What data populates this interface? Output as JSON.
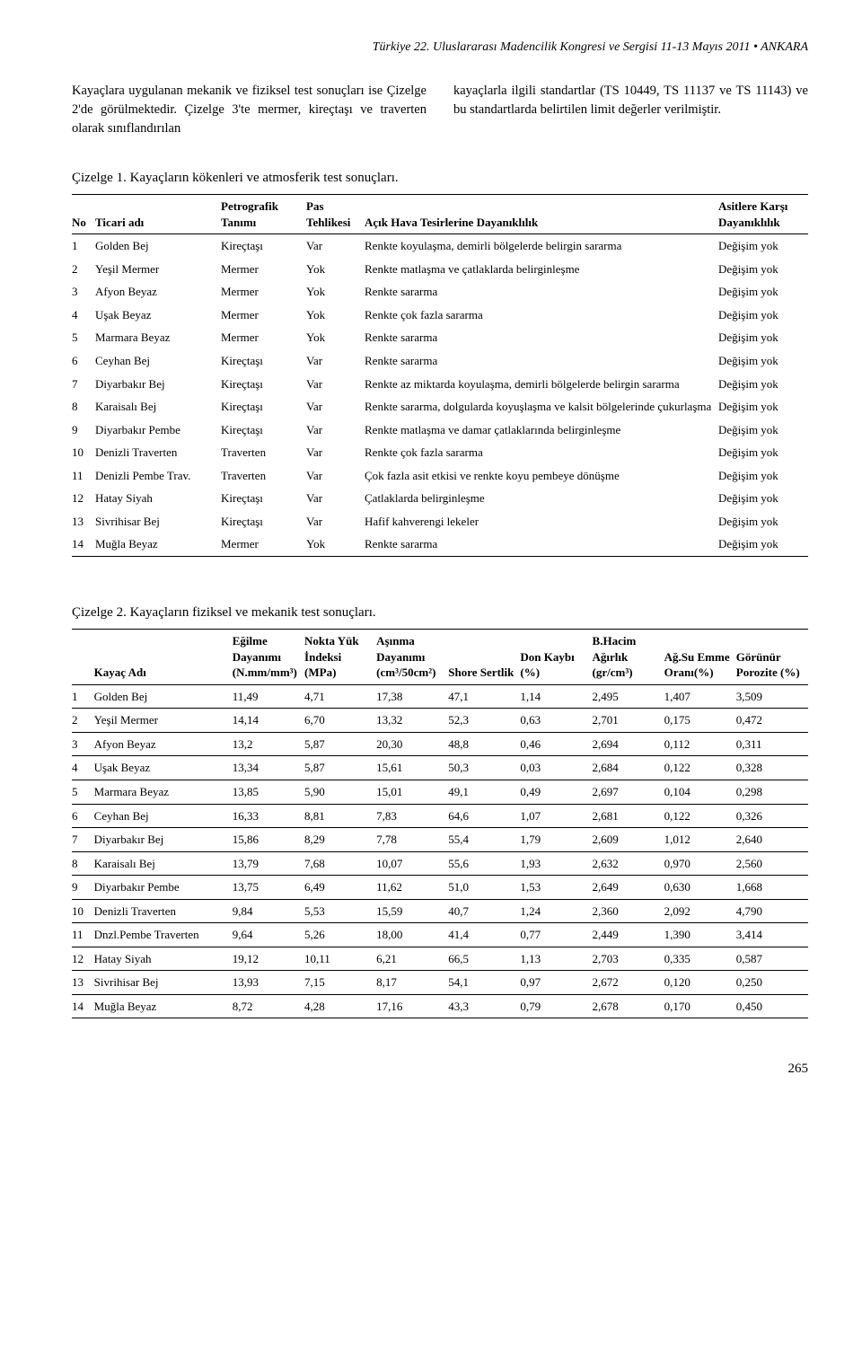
{
  "header": "Türkiye 22. Uluslararası Madencilik Kongresi ve Sergisi 11-13 Mayıs 2011 • ANKARA",
  "intro": {
    "left": "Kayaçlara uygulanan mekanik ve fiziksel test sonuçları ise Çizelge 2'de görülmektedir. Çizelge 3'te mermer, kireçtaşı ve traverten olarak sınıflandırılan",
    "right": "kayaçlarla ilgili standartlar (TS 10449, TS 11137 ve TS 11143) ve bu standartlarda belirtilen limit değerler verilmiştir."
  },
  "table1": {
    "title": "Çizelge 1. Kayaçların kökenleri ve atmosferik test sonuçları.",
    "headers": {
      "no": "No",
      "name": "Ticari adı",
      "petro": "Petrografik Tanımı",
      "pas": "Pas Tehlikesi",
      "acik": "Açık Hava Tesirlerine Dayanıklılık",
      "asit": "Asitlere Karşı Dayanıklılık"
    },
    "rows": [
      {
        "no": "1",
        "name": "Golden Bej",
        "petro": "Kireçtaşı",
        "pas": "Var",
        "acik": "Renkte koyulaşma, demirli bölgelerde belirgin sararma",
        "asit": "Değişim yok"
      },
      {
        "no": "2",
        "name": "Yeşil Mermer",
        "petro": "Mermer",
        "pas": "Yok",
        "acik": "Renkte matlaşma ve çatlaklarda belirginleşme",
        "asit": "Değişim yok"
      },
      {
        "no": "3",
        "name": "Afyon Beyaz",
        "petro": "Mermer",
        "pas": "Yok",
        "acik": "Renkte sararma",
        "asit": "Değişim yok"
      },
      {
        "no": "4",
        "name": "Uşak Beyaz",
        "petro": "Mermer",
        "pas": "Yok",
        "acik": "Renkte çok fazla sararma",
        "asit": "Değişim yok"
      },
      {
        "no": "5",
        "name": "Marmara Beyaz",
        "petro": "Mermer",
        "pas": "Yok",
        "acik": "Renkte sararma",
        "asit": "Değişim yok"
      },
      {
        "no": "6",
        "name": "Ceyhan Bej",
        "petro": "Kireçtaşı",
        "pas": "Var",
        "acik": "Renkte sararma",
        "asit": "Değişim yok"
      },
      {
        "no": "7",
        "name": "Diyarbakır Bej",
        "petro": "Kireçtaşı",
        "pas": "Var",
        "acik": "Renkte az miktarda koyulaşma, demirli bölgelerde belirgin sararma",
        "asit": "Değişim yok"
      },
      {
        "no": "8",
        "name": "Karaisalı Bej",
        "petro": "Kireçtaşı",
        "pas": "Var",
        "acik": "Renkte sararma, dolgularda koyuşlaşma ve kalsit bölgelerinde çukurlaşma",
        "asit": "Değişim yok"
      },
      {
        "no": "9",
        "name": "Diyarbakır Pembe",
        "petro": "Kireçtaşı",
        "pas": "Var",
        "acik": "Renkte matlaşma ve damar çatlaklarında belirginleşme",
        "asit": "Değişim yok"
      },
      {
        "no": "10",
        "name": "Denizli Traverten",
        "petro": "Traverten",
        "pas": "Var",
        "acik": "Renkte çok fazla sararma",
        "asit": "Değişim yok"
      },
      {
        "no": "11",
        "name": "Denizli Pembe Trav.",
        "petro": "Traverten",
        "pas": "Var",
        "acik": "Çok fazla asit etkisi ve renkte koyu pembeye dönüşme",
        "asit": "Değişim yok"
      },
      {
        "no": "12",
        "name": "Hatay Siyah",
        "petro": "Kireçtaşı",
        "pas": "Var",
        "acik": "Çatlaklarda belirginleşme",
        "asit": "Değişim yok"
      },
      {
        "no": "13",
        "name": "Sivrihisar Bej",
        "petro": "Kireçtaşı",
        "pas": "Var",
        "acik": "Hafif kahverengi lekeler",
        "asit": "Değişim yok"
      },
      {
        "no": "14",
        "name": "Muğla Beyaz",
        "petro": "Mermer",
        "pas": "Yok",
        "acik": "Renkte sararma",
        "asit": "Değişim yok"
      }
    ]
  },
  "table2": {
    "title": "Çizelge 2. Kayaçların fiziksel ve mekanik test sonuçları.",
    "headers": {
      "no": "",
      "name": "Kayaç Adı",
      "egilme": "Eğilme Dayanımı (N.mm/mm³)",
      "nokta": "Nokta Yük İndeksi (MPa)",
      "asinma": "Aşınma Dayanımı (cm³/50cm²)",
      "shore": "Shore Sertlik",
      "don": "Don Kaybı (%)",
      "bhacim": "B.Hacim Ağırlık (gr/cm³)",
      "agsu": "Ağ.Su Emme Oranı(%)",
      "porozite": "Görünür Porozite (%)"
    },
    "rows": [
      {
        "no": "1",
        "name": "Golden Bej",
        "egilme": "11,49",
        "nokta": "4,71",
        "asinma": "17,38",
        "shore": "47,1",
        "don": "1,14",
        "bhacim": "2,495",
        "agsu": "1,407",
        "porozite": "3,509"
      },
      {
        "no": "2",
        "name": "Yeşil Mermer",
        "egilme": "14,14",
        "nokta": "6,70",
        "asinma": "13,32",
        "shore": "52,3",
        "don": "0,63",
        "bhacim": "2,701",
        "agsu": "0,175",
        "porozite": "0,472"
      },
      {
        "no": "3",
        "name": "Afyon Beyaz",
        "egilme": "13,2",
        "nokta": "5,87",
        "asinma": "20,30",
        "shore": "48,8",
        "don": "0,46",
        "bhacim": "2,694",
        "agsu": "0,112",
        "porozite": "0,311"
      },
      {
        "no": "4",
        "name": "Uşak Beyaz",
        "egilme": "13,34",
        "nokta": "5,87",
        "asinma": "15,61",
        "shore": "50,3",
        "don": "0,03",
        "bhacim": "2,684",
        "agsu": "0,122",
        "porozite": "0,328"
      },
      {
        "no": "5",
        "name": "Marmara Beyaz",
        "egilme": "13,85",
        "nokta": "5,90",
        "asinma": "15,01",
        "shore": "49,1",
        "don": "0,49",
        "bhacim": "2,697",
        "agsu": "0,104",
        "porozite": "0,298"
      },
      {
        "no": "6",
        "name": "Ceyhan Bej",
        "egilme": "16,33",
        "nokta": "8,81",
        "asinma": "7,83",
        "shore": "64,6",
        "don": "1,07",
        "bhacim": "2,681",
        "agsu": "0,122",
        "porozite": "0,326"
      },
      {
        "no": "7",
        "name": "Diyarbakır Bej",
        "egilme": "15,86",
        "nokta": "8,29",
        "asinma": "7,78",
        "shore": "55,4",
        "don": "1,79",
        "bhacim": "2,609",
        "agsu": "1,012",
        "porozite": "2,640"
      },
      {
        "no": "8",
        "name": "Karaisalı Bej",
        "egilme": "13,79",
        "nokta": "7,68",
        "asinma": "10,07",
        "shore": "55,6",
        "don": "1,93",
        "bhacim": "2,632",
        "agsu": "0,970",
        "porozite": "2,560"
      },
      {
        "no": "9",
        "name": "Diyarbakır Pembe",
        "egilme": "13,75",
        "nokta": "6,49",
        "asinma": "11,62",
        "shore": "51,0",
        "don": "1,53",
        "bhacim": "2,649",
        "agsu": "0,630",
        "porozite": "1,668"
      },
      {
        "no": "10",
        "name": "Denizli Traverten",
        "egilme": "9,84",
        "nokta": "5,53",
        "asinma": "15,59",
        "shore": "40,7",
        "don": "1,24",
        "bhacim": "2,360",
        "agsu": "2,092",
        "porozite": "4,790"
      },
      {
        "no": "11",
        "name": "Dnzl.Pembe Traverten",
        "egilme": "9,64",
        "nokta": "5,26",
        "asinma": "18,00",
        "shore": "41,4",
        "don": "0,77",
        "bhacim": "2,449",
        "agsu": "1,390",
        "porozite": "3,414"
      },
      {
        "no": "12",
        "name": "Hatay Siyah",
        "egilme": "19,12",
        "nokta": "10,11",
        "asinma": "6,21",
        "shore": "66,5",
        "don": "1,13",
        "bhacim": "2,703",
        "agsu": "0,335",
        "porozite": "0,587"
      },
      {
        "no": "13",
        "name": "Sivrihisar Bej",
        "egilme": "13,93",
        "nokta": "7,15",
        "asinma": "8,17",
        "shore": "54,1",
        "don": "0,97",
        "bhacim": "2,672",
        "agsu": "0,120",
        "porozite": "0,250"
      },
      {
        "no": "14",
        "name": "Muğla Beyaz",
        "egilme": "8,72",
        "nokta": "4,28",
        "asinma": "17,16",
        "shore": "43,3",
        "don": "0,79",
        "bhacim": "2,678",
        "agsu": "0,170",
        "porozite": "0,450"
      }
    ]
  },
  "page_number": "265",
  "style": {
    "background_color": "#ffffff",
    "text_color": "#000000",
    "font_family": "Times New Roman",
    "border_color": "#000000"
  }
}
